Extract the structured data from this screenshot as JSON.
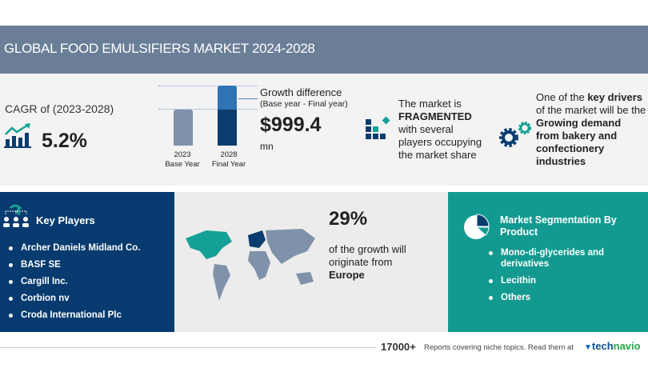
{
  "header": {
    "title": "GLOBAL FOOD EMULSIFIERS MARKET 2024-2028"
  },
  "cagr": {
    "label": "CAGR of (2023-2028)",
    "value": "5.2%",
    "icon": "growth-chart-icon"
  },
  "bars": {
    "base_year": "2023",
    "base_label": "Base Year",
    "final_year": "2028",
    "final_label": "Final Year"
  },
  "growth": {
    "title": "Growth difference",
    "subtitle": "(Base year - Final year)",
    "value": "$999.4",
    "unit": "mn"
  },
  "market": {
    "line1": "The market is",
    "bold": "FRAGMENTED",
    "line3": "with several",
    "line4": "players occupying",
    "line5": "the market share",
    "icon": "blocks-icon"
  },
  "drivers": {
    "pre": "One of the ",
    "bold1": "key drivers",
    "line2": "of the market will be the",
    "b1": "Growing demand",
    "b2": "from bakery and",
    "b3": "confectionery",
    "b4": "industries",
    "icon": "gears-icon"
  },
  "key_players": {
    "title": "Key Players",
    "items": [
      "Archer Daniels Midland Co.",
      "BASF SE",
      "Cargill Inc.",
      "Corbion nv",
      "Croda International Plc"
    ]
  },
  "geo": {
    "percent": "29%",
    "line1": "of the growth will",
    "line2": "originate from",
    "region": "Europe"
  },
  "segmentation": {
    "title1": "Market Segmentation By",
    "title2": "Product",
    "items": [
      "Mono-di-glycerides and derivatives",
      "Lecithin",
      "Others"
    ]
  },
  "footer": {
    "count": "17000+",
    "text": "Reports covering niche topics. Read them at",
    "brand1": "tech",
    "brand2": "navio"
  },
  "colors": {
    "header": "#6a7f97",
    "navy": "#073b6f",
    "teal": "#139a90"
  }
}
